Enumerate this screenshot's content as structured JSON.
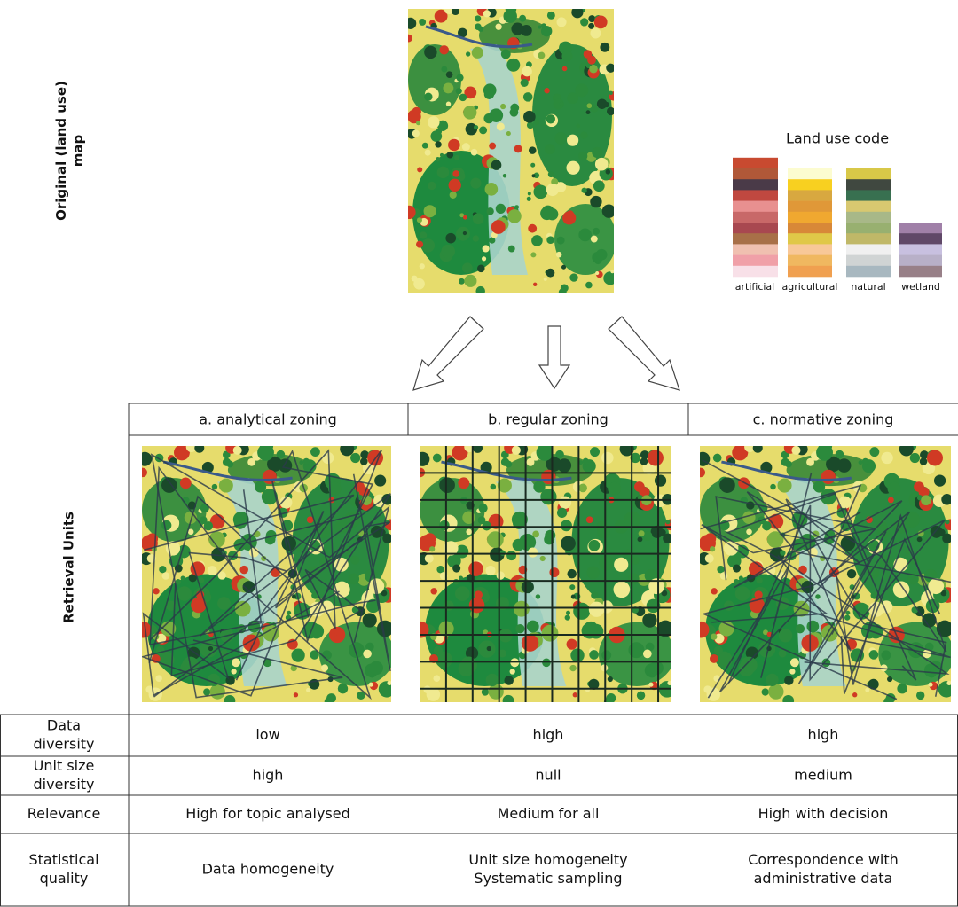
{
  "row_labels": {
    "original": "Original (land use) map",
    "retrieval": "Retrieval Units"
  },
  "legend": {
    "title": "Land use code",
    "groups": [
      {
        "label": "artificial",
        "colors": [
          "#c84a30",
          "#b05838",
          "#4a3a48",
          "#c04840",
          "#e89090",
          "#c86868",
          "#a84850",
          "#a87048",
          "#f0c0b0",
          "#f0a0a8",
          "#f8e0e8"
        ]
      },
      {
        "label": "agricultural",
        "colors": [
          "#fcfcd0",
          "#f8d020",
          "#d8a840",
          "#e09838",
          "#f0a830",
          "#d88838",
          "#e0c848",
          "#f8c898",
          "#f0b860",
          "#f0a050"
        ]
      },
      {
        "label": "natural",
        "colors": [
          "#d8c848",
          "#404840",
          "#387050",
          "#d8c870",
          "#a8b888",
          "#98b070",
          "#c0b868",
          "#f0f0f0",
          "#d0d4d4",
          "#a8b8c0"
        ]
      },
      {
        "label": "wetland",
        "colors": [
          "#a080a8",
          "#604868",
          "#c8c0e0",
          "#b8b0c8",
          "#988088"
        ]
      }
    ]
  },
  "columns": [
    "a. analytical zoning",
    "b. regular zoning",
    "c. normative zoning"
  ],
  "table": {
    "rows": [
      {
        "label": [
          "Data",
          "diversity"
        ],
        "cells": [
          [
            "low"
          ],
          [
            "high"
          ],
          [
            "high"
          ]
        ]
      },
      {
        "label": [
          "Unit size",
          "diversity"
        ],
        "cells": [
          [
            "high"
          ],
          [
            "null"
          ],
          [
            "medium"
          ]
        ]
      },
      {
        "label": [
          "Relevance"
        ],
        "cells": [
          [
            "High for topic analysed"
          ],
          [
            "Medium for all"
          ],
          [
            "High with decision"
          ]
        ]
      },
      {
        "label": [
          "Statistical",
          "quality"
        ],
        "cells": [
          [
            "Data homogeneity"
          ],
          [
            "Unit size homogeneity",
            "Systematic sampling"
          ],
          [
            "Correspondence with",
            "administrative data"
          ]
        ]
      }
    ]
  }
}
